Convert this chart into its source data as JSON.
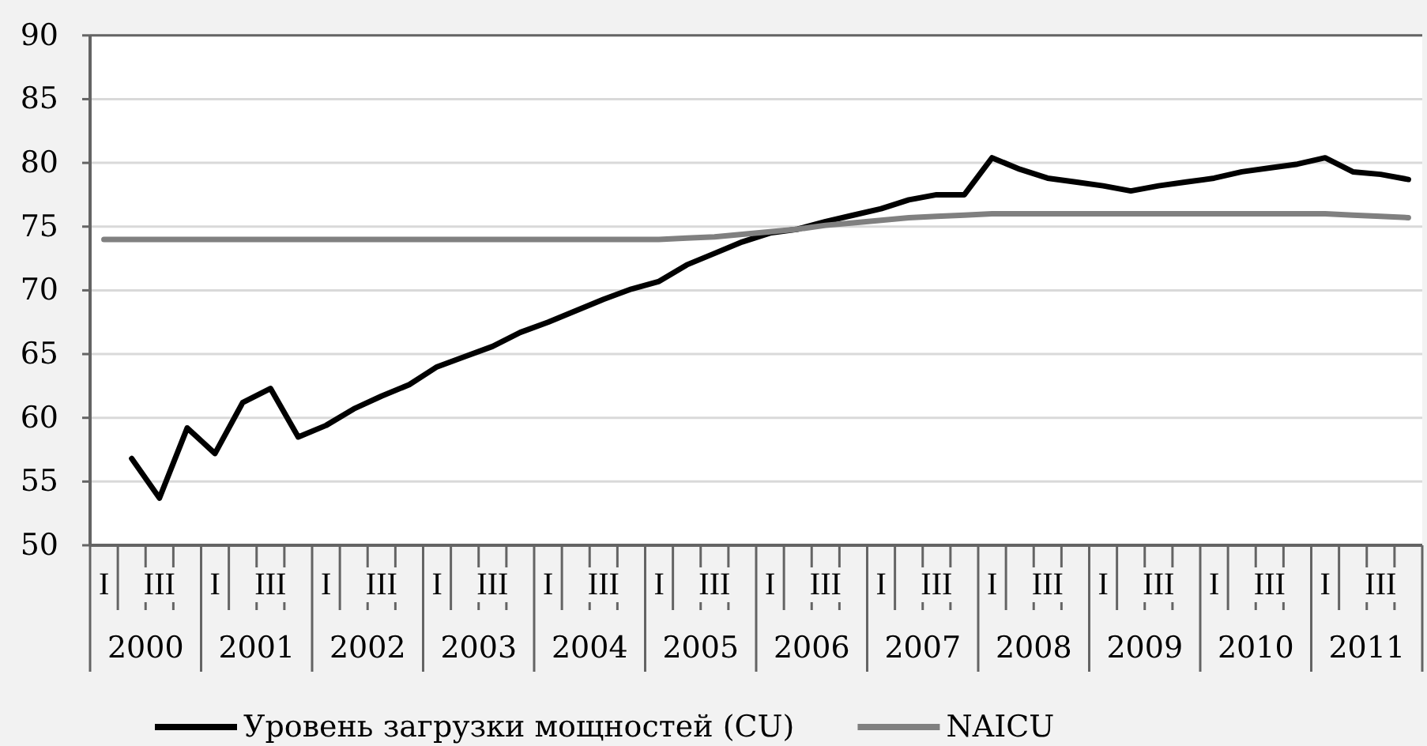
{
  "chart_data": {
    "type": "line",
    "categories": [
      "I",
      null,
      "III",
      null,
      "I",
      null,
      "III",
      null,
      "I",
      null,
      "III",
      null,
      "I",
      null,
      "III",
      null,
      "I",
      null,
      "III",
      null,
      "I",
      null,
      "III",
      null,
      "I",
      null,
      "III",
      null,
      "I",
      null,
      "III",
      null,
      "I",
      null,
      "III",
      null,
      "I",
      null,
      "III",
      null,
      "I",
      null,
      "III",
      null,
      "I",
      null,
      "III",
      null
    ],
    "series": [
      {
        "name": "Уровень загрузки мощностей (CU)",
        "color": "#000000",
        "values": [
          null,
          56.8,
          53.7,
          59.2,
          57.2,
          61.2,
          62.3,
          58.5,
          59.4,
          60.7,
          61.7,
          62.6,
          64.0,
          64.8,
          65.6,
          66.7,
          67.5,
          68.4,
          69.3,
          70.1,
          70.7,
          72.0,
          72.9,
          73.8,
          74.5,
          74.8,
          75.4,
          75.9,
          76.4,
          77.1,
          77.5,
          77.5,
          80.4,
          79.5,
          78.8,
          78.5,
          78.2,
          77.8,
          78.2,
          78.5,
          78.8,
          79.3,
          79.6,
          79.9,
          80.4,
          79.3,
          79.1,
          78.7
        ]
      },
      {
        "name": "NAICU",
        "color": "#808080",
        "values": [
          74.0,
          74.0,
          74.0,
          74.0,
          74.0,
          74.0,
          74.0,
          74.0,
          74.0,
          74.0,
          74.0,
          74.0,
          74.0,
          74.0,
          74.0,
          74.0,
          74.0,
          74.0,
          74.0,
          74.0,
          74.0,
          74.1,
          74.2,
          74.4,
          74.6,
          74.8,
          75.1,
          75.3,
          75.5,
          75.7,
          75.8,
          75.9,
          76.0,
          76.0,
          76.0,
          76.0,
          76.0,
          76.0,
          76.0,
          76.0,
          76.0,
          76.0,
          76.0,
          76.0,
          76.0,
          75.9,
          75.8,
          75.7
        ]
      }
    ],
    "annotations": [
      "2000",
      "2001",
      "2002",
      "2003",
      "2004",
      "2005",
      "2006",
      "2007",
      "2008",
      "2009",
      "2010",
      "2011"
    ],
    "ylim": [
      50,
      90
    ],
    "yticks": [
      50,
      55,
      60,
      65,
      70,
      75,
      80,
      85,
      90
    ],
    "grid": "y",
    "legend": "bottom"
  }
}
